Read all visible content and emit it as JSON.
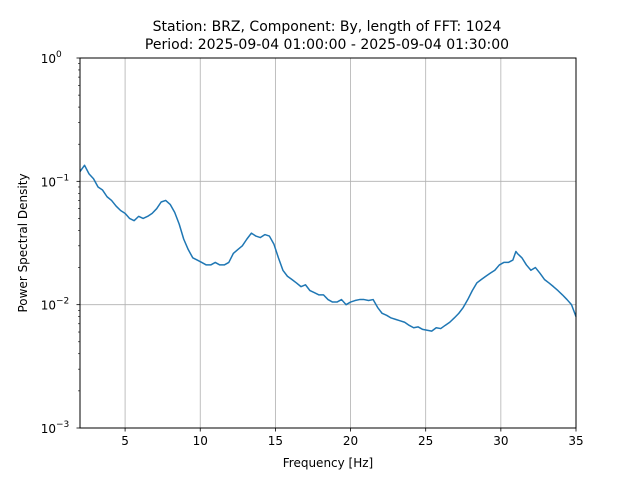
{
  "chart_data": {
    "type": "line",
    "title_line1": "Station: BRZ, Component: By, length of FFT: 1024",
    "title_line2": "Period: 2025-09-04 01:00:00 - 2025-09-04 01:30:00",
    "xlabel": "Frequency [Hz]",
    "ylabel": "Power Spectral Density",
    "xlim": [
      2,
      35
    ],
    "ylim": [
      0.001,
      1
    ],
    "yscale": "log",
    "grid": true,
    "line_color": "#1f77b4",
    "x_ticks": [
      {
        "value": 5,
        "label": "5"
      },
      {
        "value": 10,
        "label": "10"
      },
      {
        "value": 15,
        "label": "15"
      },
      {
        "value": 20,
        "label": "20"
      },
      {
        "value": 25,
        "label": "25"
      },
      {
        "value": 30,
        "label": "30"
      },
      {
        "value": 35,
        "label": "35"
      }
    ],
    "y_ticks": [
      {
        "value": 0.001,
        "base": "10",
        "exp": "−3"
      },
      {
        "value": 0.01,
        "base": "10",
        "exp": "−2"
      },
      {
        "value": 0.1,
        "base": "10",
        "exp": "−1"
      },
      {
        "value": 1,
        "base": "10",
        "exp": "0"
      }
    ],
    "series": [
      {
        "x": [
          2.0,
          2.3,
          2.6,
          2.9,
          3.2,
          3.5,
          3.8,
          4.1,
          4.4,
          4.7,
          5.0,
          5.3,
          5.6,
          5.9,
          6.2,
          6.5,
          6.8,
          7.1,
          7.4,
          7.7,
          8.0,
          8.3,
          8.6,
          8.9,
          9.2,
          9.5,
          9.8,
          10.1,
          10.4,
          10.7,
          11.0,
          11.3,
          11.6,
          11.9,
          12.2,
          12.5,
          12.8,
          13.1,
          13.4,
          13.7,
          14.0,
          14.3,
          14.6,
          14.9,
          15.2,
          15.5,
          15.8,
          16.1,
          16.4,
          16.7,
          17.0,
          17.3,
          17.6,
          17.9,
          18.2,
          18.5,
          18.8,
          19.1,
          19.4,
          19.7,
          20.0,
          20.3,
          20.6,
          20.9,
          21.2,
          21.5,
          21.8,
          22.1,
          22.4,
          22.7,
          23.0,
          23.3,
          23.6,
          23.9,
          24.2,
          24.5,
          24.8,
          25.1,
          25.4,
          25.7,
          26.0,
          26.3,
          26.6,
          26.9,
          27.2,
          27.5,
          27.8,
          28.1,
          28.4,
          28.7,
          29.0,
          29.3,
          29.6,
          29.9,
          30.2,
          30.5,
          30.8,
          31.0,
          31.1,
          31.4,
          31.7,
          32.0,
          32.3,
          32.6,
          32.9,
          33.2,
          33.5,
          33.8,
          34.1,
          34.4,
          34.7,
          35.0
        ],
        "y": [
          0.12,
          0.135,
          0.115,
          0.105,
          0.09,
          0.085,
          0.075,
          0.07,
          0.063,
          0.058,
          0.055,
          0.05,
          0.048,
          0.052,
          0.05,
          0.052,
          0.055,
          0.06,
          0.068,
          0.07,
          0.065,
          0.056,
          0.045,
          0.034,
          0.028,
          0.024,
          0.023,
          0.022,
          0.021,
          0.021,
          0.022,
          0.021,
          0.021,
          0.022,
          0.026,
          0.028,
          0.03,
          0.034,
          0.038,
          0.036,
          0.035,
          0.037,
          0.036,
          0.031,
          0.024,
          0.019,
          0.017,
          0.016,
          0.015,
          0.014,
          0.0145,
          0.013,
          0.0125,
          0.012,
          0.012,
          0.011,
          0.0105,
          0.0105,
          0.011,
          0.01,
          0.0105,
          0.0108,
          0.011,
          0.011,
          0.0108,
          0.011,
          0.0095,
          0.0085,
          0.0082,
          0.0078,
          0.0076,
          0.0074,
          0.0072,
          0.0068,
          0.0065,
          0.0066,
          0.0063,
          0.0062,
          0.0061,
          0.0065,
          0.0064,
          0.0068,
          0.0072,
          0.0078,
          0.0085,
          0.0095,
          0.011,
          0.013,
          0.015,
          0.016,
          0.017,
          0.018,
          0.019,
          0.021,
          0.022,
          0.022,
          0.023,
          0.027,
          0.026,
          0.024,
          0.021,
          0.019,
          0.02,
          0.018,
          0.016,
          0.015,
          0.014,
          0.013,
          0.012,
          0.011,
          0.01,
          0.008
        ]
      }
    ]
  }
}
